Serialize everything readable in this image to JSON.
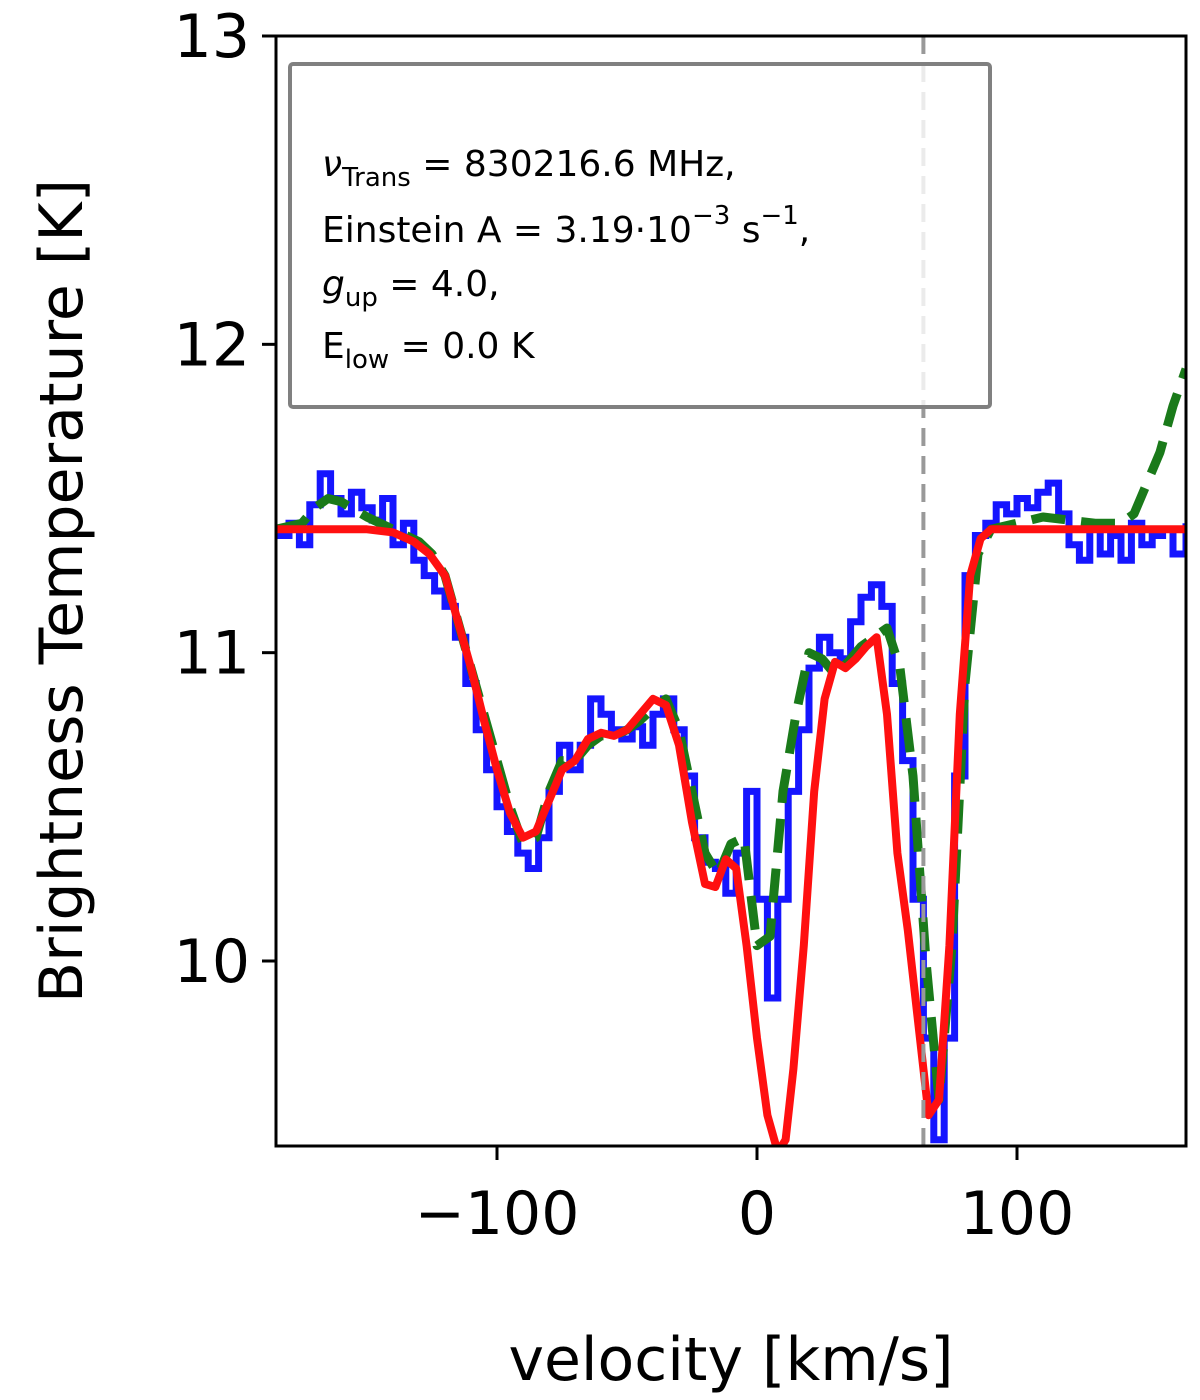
{
  "chart_data": {
    "type": "line",
    "title": "",
    "xlabel": "velocity [km/s]",
    "ylabel": "Brightness Temperature [K]",
    "xlim": [
      -185,
      165
    ],
    "ylim": [
      9.4,
      13.0
    ],
    "x_ticks": [
      -100,
      0,
      100
    ],
    "x_tick_labels": [
      "−100",
      "0",
      "100"
    ],
    "y_ticks": [
      10,
      11,
      12,
      13
    ],
    "y_tick_labels": [
      "10",
      "11",
      "12",
      "13"
    ],
    "grid": false,
    "vline": {
      "x": 64,
      "style": "dashed",
      "color": "#999999"
    },
    "annotation": {
      "position": "top-left",
      "lines": [
        {
          "main": "ν",
          "sub": "Trans",
          "rest": " = 830216.6 MHz,"
        },
        {
          "main": "Einstein A = 3.19·10",
          "sup": "−3",
          "rest": " s",
          "sup2": "−1",
          "rest2": ","
        },
        {
          "main": "g",
          "sub": "up",
          "rest": " = 4.0,"
        },
        {
          "main": "E",
          "sub": "low",
          "rest": " = 0.0 K"
        }
      ]
    },
    "series": [
      {
        "name": "observed",
        "color": "#1515ff",
        "style": "steps",
        "x": [
          -185,
          -180,
          -176,
          -172,
          -168,
          -164,
          -160,
          -156,
          -152,
          -148,
          -144,
          -140,
          -136,
          -132,
          -128,
          -124,
          -120,
          -116,
          -112,
          -108,
          -104,
          -100,
          -96,
          -92,
          -88,
          -84,
          -80,
          -76,
          -72,
          -68,
          -64,
          -60,
          -56,
          -52,
          -48,
          -44,
          -40,
          -36,
          -32,
          -28,
          -24,
          -20,
          -16,
          -12,
          -8,
          -4,
          0,
          4,
          8,
          12,
          16,
          20,
          24,
          28,
          32,
          36,
          40,
          44,
          48,
          52,
          56,
          60,
          64,
          68,
          72,
          76,
          80,
          84,
          88,
          92,
          96,
          100,
          104,
          108,
          112,
          116,
          120,
          124,
          128,
          132,
          136,
          140,
          144,
          148,
          152,
          156,
          160,
          165
        ],
        "y": [
          11.38,
          11.42,
          11.35,
          11.48,
          11.58,
          11.5,
          11.45,
          11.52,
          11.47,
          11.43,
          11.5,
          11.35,
          11.42,
          11.3,
          11.25,
          11.2,
          11.15,
          11.05,
          10.9,
          10.75,
          10.62,
          10.5,
          10.42,
          10.35,
          10.3,
          10.4,
          10.55,
          10.7,
          10.62,
          10.7,
          10.85,
          10.8,
          10.75,
          10.72,
          10.76,
          10.7,
          10.8,
          10.85,
          10.75,
          10.6,
          10.4,
          10.32,
          10.3,
          10.22,
          10.35,
          10.55,
          10.2,
          9.88,
          10.2,
          10.55,
          10.75,
          10.95,
          11.05,
          11.0,
          10.98,
          11.1,
          11.18,
          11.22,
          11.15,
          10.9,
          10.65,
          10.2,
          9.75,
          9.42,
          9.75,
          10.6,
          11.25,
          11.38,
          11.42,
          11.48,
          11.45,
          11.5,
          11.47,
          11.52,
          11.55,
          11.45,
          11.35,
          11.3,
          11.42,
          11.32,
          11.38,
          11.3,
          11.42,
          11.35,
          11.38,
          11.4,
          11.32,
          11.42
        ]
      },
      {
        "name": "model_dashed",
        "color": "#1a7a1a",
        "style": "dashed",
        "x": [
          -185,
          -175,
          -170,
          -165,
          -160,
          -150,
          -140,
          -130,
          -125,
          -120,
          -115,
          -110,
          -105,
          -100,
          -95,
          -90,
          -85,
          -80,
          -75,
          -70,
          -65,
          -60,
          -55,
          -50,
          -45,
          -40,
          -35,
          -30,
          -25,
          -20,
          -15,
          -10,
          -5,
          0,
          5,
          10,
          15,
          20,
          25,
          30,
          35,
          40,
          45,
          50,
          55,
          60,
          65,
          70,
          75,
          80,
          85,
          90,
          100,
          110,
          120,
          130,
          140,
          145,
          150,
          155,
          160,
          165
        ],
        "y": [
          11.4,
          11.42,
          11.47,
          11.5,
          11.49,
          11.44,
          11.4,
          11.36,
          11.32,
          11.25,
          11.1,
          10.95,
          10.8,
          10.65,
          10.5,
          10.38,
          10.4,
          10.55,
          10.65,
          10.65,
          10.7,
          10.73,
          10.73,
          10.75,
          10.78,
          10.82,
          10.85,
          10.75,
          10.55,
          10.35,
          10.28,
          10.38,
          10.4,
          10.05,
          10.08,
          10.55,
          10.8,
          11.0,
          10.98,
          10.93,
          10.97,
          11.02,
          11.05,
          11.08,
          10.95,
          10.6,
          10.0,
          9.55,
          10.05,
          10.9,
          11.32,
          11.4,
          11.42,
          11.44,
          11.43,
          11.42,
          11.42,
          11.45,
          11.55,
          11.65,
          11.8,
          11.92
        ]
      },
      {
        "name": "model_solid",
        "color": "#ff1010",
        "style": "solid",
        "x": [
          -185,
          -170,
          -160,
          -150,
          -140,
          -132,
          -126,
          -120,
          -115,
          -110,
          -105,
          -100,
          -95,
          -90,
          -85,
          -80,
          -75,
          -70,
          -65,
          -60,
          -55,
          -50,
          -45,
          -40,
          -35,
          -30,
          -25,
          -20,
          -16,
          -12,
          -8,
          -4,
          0,
          4,
          8,
          11,
          14,
          18,
          22,
          26,
          30,
          34,
          38,
          42,
          46,
          50,
          54,
          58,
          62,
          66,
          70,
          74,
          78,
          82,
          86,
          90,
          100,
          120,
          140,
          165
        ],
        "y": [
          11.4,
          11.4,
          11.4,
          11.4,
          11.39,
          11.36,
          11.32,
          11.25,
          11.1,
          10.95,
          10.78,
          10.62,
          10.48,
          10.4,
          10.42,
          10.52,
          10.62,
          10.65,
          10.72,
          10.74,
          10.73,
          10.75,
          10.8,
          10.85,
          10.83,
          10.7,
          10.45,
          10.25,
          10.24,
          10.33,
          10.3,
          10.05,
          9.75,
          9.5,
          9.38,
          9.42,
          9.65,
          10.05,
          10.55,
          10.85,
          10.97,
          10.95,
          10.98,
          11.02,
          11.05,
          10.8,
          10.35,
          10.1,
          9.8,
          9.5,
          9.55,
          10.05,
          10.8,
          11.25,
          11.37,
          11.4,
          11.4,
          11.4,
          11.4,
          11.4
        ]
      }
    ]
  }
}
